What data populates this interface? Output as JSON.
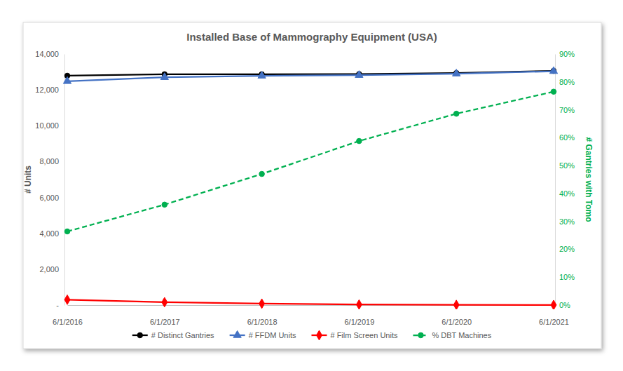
{
  "chart_data": {
    "type": "line",
    "title": "Installed Base of Mammography Equipment (USA)",
    "y_label": "# Units",
    "y2_label": "# Gantries with Tomo",
    "categories": [
      "6/1/2016",
      "6/1/2017",
      "6/1/2018",
      "6/1/2019",
      "6/1/2020",
      "6/1/2021"
    ],
    "series": [
      {
        "name": "# Distinct Gantries",
        "color": "#000000",
        "marker": "circle",
        "line_style": "solid",
        "values": [
          12790,
          12870,
          12870,
          12880,
          12940,
          13060
        ]
      },
      {
        "name": "# FFDM Units",
        "color": "#4472c4",
        "marker": "triangle",
        "line_style": "solid",
        "values": [
          12480,
          12700,
          12780,
          12820,
          12900,
          13040
        ]
      },
      {
        "name": "# Film Screen Units",
        "color": "#ff0000",
        "marker": "diamond",
        "line_style": "solid",
        "values": [
          300,
          160,
          80,
          30,
          10,
          5
        ]
      },
      {
        "name": "% DBT Machines",
        "color": "#00b050",
        "marker": "circle",
        "line_style": "dashed",
        "axis": "y2",
        "values": [
          26.4,
          36.0,
          47.0,
          58.8,
          68.6,
          76.5
        ]
      }
    ],
    "ylim": [
      0,
      14000
    ],
    "yticks": [
      {
        "value": 0,
        "label": "-"
      },
      {
        "value": 2000,
        "label": "2,000"
      },
      {
        "value": 4000,
        "label": "4,000"
      },
      {
        "value": 6000,
        "label": "6,000"
      },
      {
        "value": 8000,
        "label": "8,000"
      },
      {
        "value": 10000,
        "label": "10,000"
      },
      {
        "value": 12000,
        "label": "12,000"
      },
      {
        "value": 14000,
        "label": "14,000"
      }
    ],
    "y2lim": [
      0,
      90
    ],
    "y2ticks": [
      {
        "value": 0,
        "label": "0%"
      },
      {
        "value": 10,
        "label": "10%"
      },
      {
        "value": 20,
        "label": "20%"
      },
      {
        "value": 30,
        "label": "30%"
      },
      {
        "value": 40,
        "label": "40%"
      },
      {
        "value": 50,
        "label": "50%"
      },
      {
        "value": 60,
        "label": "60%"
      },
      {
        "value": 70,
        "label": "70%"
      },
      {
        "value": 80,
        "label": "80%"
      },
      {
        "value": 90,
        "label": "90%"
      }
    ],
    "grid": false,
    "legend": "bottom"
  }
}
